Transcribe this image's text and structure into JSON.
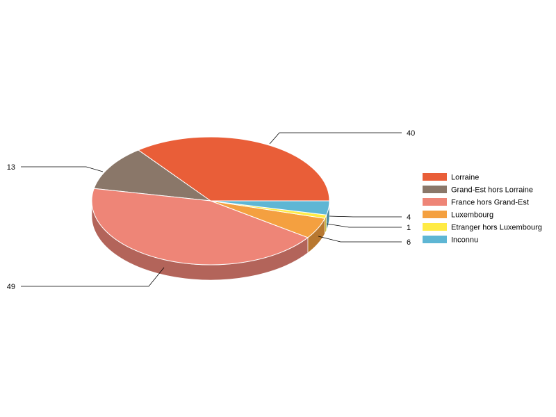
{
  "chart_data": {
    "type": "pie",
    "style": "3d",
    "categories": [
      "Lorraine",
      "Grand-Est hors Lorraine",
      "France hors Grand-Est",
      "Luxembourg",
      "Etranger hors Luxembourg",
      "Inconnu"
    ],
    "values": [
      40,
      13,
      49,
      6,
      1,
      4
    ],
    "colors": [
      "#e95e38",
      "#8a7769",
      "#ee8577",
      "#f4a040",
      "#ffeb44",
      "#5eb6d4"
    ],
    "side_colors": [
      "#af4629",
      "#67594e",
      "#b3645a",
      "#b87830",
      "#bfb033",
      "#47889f"
    ],
    "legend_position": "right"
  }
}
